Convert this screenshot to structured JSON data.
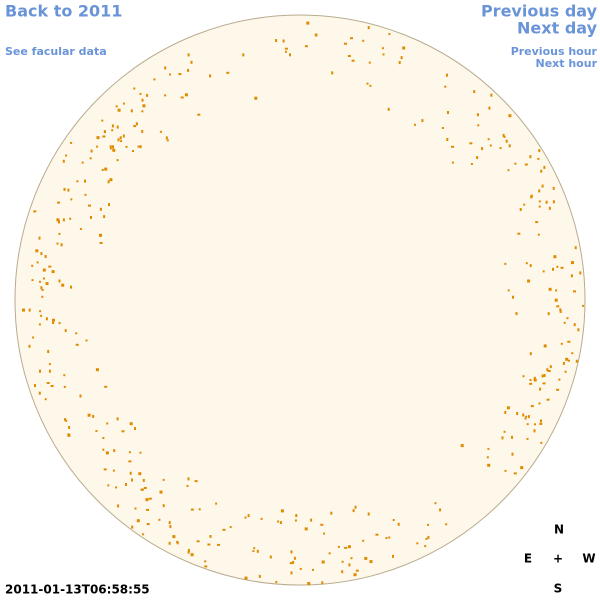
{
  "header": {
    "back_link": "Back to 2011",
    "facular_link": "See facular data",
    "previous_day": "Previous day",
    "next_day": "Next day",
    "previous_hour": "Previous hour",
    "next_hour": "Next hour"
  },
  "timestamp": "2011-01-13T06:58:55",
  "compass": {
    "north": "N",
    "east": "E",
    "center": "+",
    "west": "W",
    "south": "S"
  }
}
